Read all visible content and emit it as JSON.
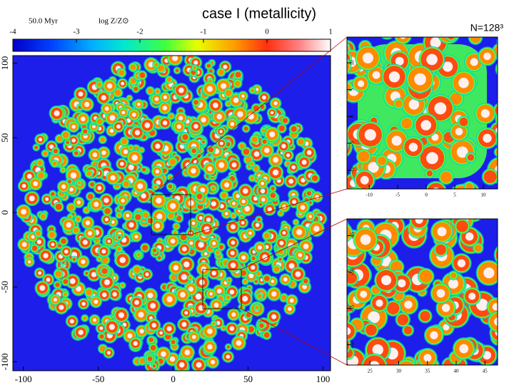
{
  "chart_data": [
    {
      "type": "heatmap",
      "title": "case I (metallicity)",
      "time_label": "50.0 Myr",
      "colorbar": {
        "label": "log Z/Z⊙",
        "lim": [
          -4,
          1
        ],
        "ticks": [
          -4,
          -3,
          -2,
          -1,
          0,
          1
        ]
      },
      "xlim": [
        -107,
        105
      ],
      "ylim": [
        -106,
        105
      ],
      "xticks": [
        -100,
        -50,
        0,
        50,
        100
      ],
      "yticks": [
        -100,
        -50,
        0,
        50,
        100
      ]
    },
    {
      "type": "heatmap",
      "annotation": "N=128³",
      "xlim": [
        -13.9,
        12.5
      ],
      "ylim": [
        -13.5,
        14.8
      ],
      "xticks": [
        -10,
        -5,
        0,
        5,
        10
      ],
      "yticks": [
        -10,
        -5,
        0,
        5,
        10
      ]
    },
    {
      "type": "heatmap",
      "xlim": [
        21,
        47.2
      ],
      "ylim": [
        -62.8,
        -42.7
      ],
      "xticks": [
        25,
        30,
        35,
        40,
        45
      ],
      "yticks": [
        -60,
        -55,
        -50,
        -45
      ]
    }
  ]
}
